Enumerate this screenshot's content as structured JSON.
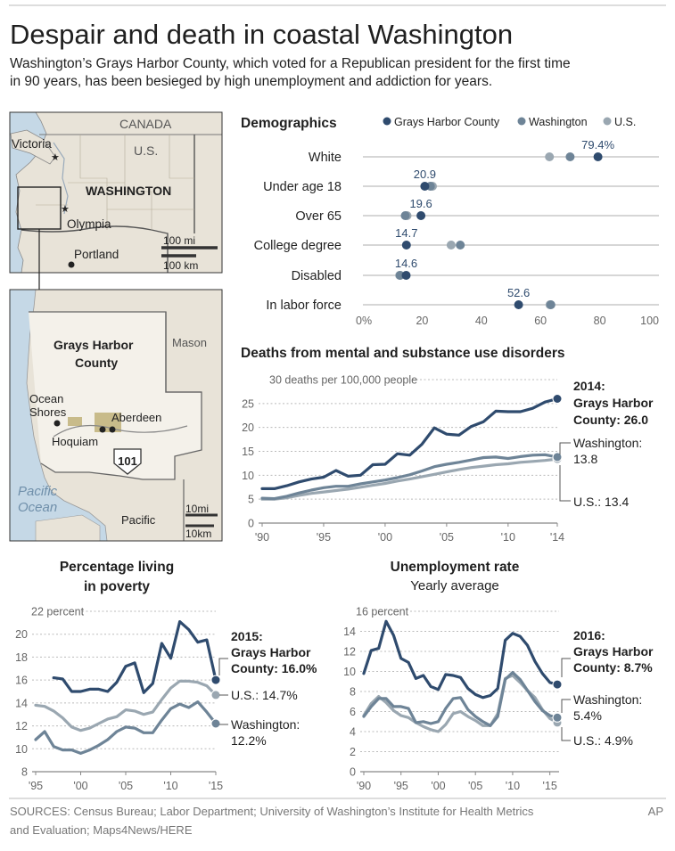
{
  "headline": "Despair and death in coastal Washington",
  "dek": [
    "Washington’s Grays Harbor County, which voted for a Republican president for the first time",
    "in 90 years, has been besieged by high unemployment and addiction for years."
  ],
  "footer": {
    "sources_lines": [
      "SOURCES: Census Bureau; Labor Department; University of Washington’s Institute for Health Metrics",
      "and Evaluation; Maps4News/HERE"
    ],
    "credit": "AP"
  },
  "colors": {
    "grays_harbor": "#2f4b6e",
    "washington": "#6e8497",
    "us": "#9aa7b1",
    "gridline": "#c8c8c8",
    "land": "#e8e3d8",
    "water": "#c5d8e6",
    "urban": "#b9a86a"
  },
  "map_top": {
    "labels": {
      "canada": "CANADA",
      "us": "U.S.",
      "state": "WASHINGTON",
      "victoria": "Victoria",
      "olympia": "Olympia",
      "portland": "Portland"
    },
    "scale": {
      "miles": "100 mi",
      "km": "100 km"
    }
  },
  "map_detail": {
    "labels": {
      "county": [
        "Grays Harbor",
        "County"
      ],
      "mason": "Mason",
      "ocean_shores": [
        "Ocean",
        "Shores"
      ],
      "aberdeen": "Aberdeen",
      "hoquiam": "Hoquiam",
      "highway": "101",
      "ocean": [
        "Pacific",
        "Ocean"
      ],
      "pacific_county": "Pacific"
    },
    "scale": {
      "miles": "10mi",
      "km": "10km"
    }
  },
  "chart_data": [
    {
      "type": "dot",
      "title": "Demographics",
      "legend": [
        "Grays Harbor County",
        "Washington",
        "U.S."
      ],
      "categories": [
        "White",
        "Under age 18",
        "Over 65",
        "College degree",
        "Disabled",
        "In labor force"
      ],
      "series": [
        {
          "name": "Grays Harbor County",
          "values": [
            79.4,
            20.9,
            19.6,
            14.7,
            14.6,
            52.6
          ]
        },
        {
          "name": "Washington",
          "values": [
            70,
            22.8,
            14.3,
            32.9,
            12.6,
            63.5
          ]
        },
        {
          "name": "U.S.",
          "values": [
            63,
            23.5,
            14.9,
            29.8,
            12.4,
            63.2
          ]
        }
      ],
      "value_labels": [
        "79.4%",
        "20.9",
        "19.6",
        "14.7",
        "14.6",
        "52.6"
      ],
      "xlim": [
        0,
        100
      ],
      "xticks": [
        0,
        20,
        40,
        60,
        80,
        100
      ],
      "xtick_labels": [
        "0%",
        "20",
        "40",
        "60",
        "80",
        "100"
      ]
    },
    {
      "type": "line",
      "title": "Deaths from mental and substance use disorders",
      "ylabel_note": "30 deaths per 100,000 people",
      "x": [
        1990,
        1991,
        1992,
        1993,
        1994,
        1995,
        1996,
        1997,
        1998,
        1999,
        2000,
        2001,
        2002,
        2003,
        2004,
        2005,
        2006,
        2007,
        2008,
        2009,
        2010,
        2011,
        2012,
        2013,
        2014
      ],
      "ylim": [
        0,
        30
      ],
      "yticks": [
        0,
        5,
        10,
        15,
        20,
        25,
        30
      ],
      "xticks": [
        1990,
        1995,
        2000,
        2005,
        2010,
        2014
      ],
      "xtick_labels": [
        "'90",
        "'95",
        "'00",
        "'05",
        "'10",
        "'14"
      ],
      "series": [
        {
          "name": "Grays Harbor County",
          "values": [
            7.2,
            7.2,
            7.8,
            8.6,
            9.2,
            9.6,
            11.0,
            9.8,
            10.0,
            12.2,
            12.3,
            14.5,
            14.2,
            16.5,
            19.9,
            18.6,
            18.4,
            20.2,
            21.2,
            23.4,
            23.3,
            23.3,
            24.0,
            25.3,
            26.0
          ]
        },
        {
          "name": "Washington",
          "values": [
            5.2,
            5.1,
            5.6,
            6.3,
            6.9,
            7.4,
            7.7,
            7.7,
            8.2,
            8.6,
            9.0,
            9.5,
            10.1,
            10.9,
            11.8,
            12.3,
            12.7,
            13.2,
            13.7,
            13.8,
            13.5,
            13.9,
            14.2,
            14.3,
            13.8
          ]
        },
        {
          "name": "U.S.",
          "values": [
            5.0,
            5.0,
            5.3,
            5.8,
            6.2,
            6.5,
            6.8,
            7.1,
            7.5,
            7.9,
            8.3,
            8.8,
            9.2,
            9.7,
            10.2,
            10.7,
            11.2,
            11.6,
            11.9,
            12.2,
            12.4,
            12.7,
            12.9,
            13.1,
            13.4
          ]
        }
      ],
      "end_labels": {
        "grays_harbor": [
          "2014:",
          "Grays Harbor",
          "County: 26.0"
        ],
        "washington": [
          "Washington:",
          "13.8"
        ],
        "us": [
          "U.S.: 13.4"
        ]
      }
    },
    {
      "type": "line",
      "title": [
        "Percentage living",
        "in poverty"
      ],
      "ylabel_note": "22 percent",
      "x": [
        1995,
        1996,
        1997,
        1998,
        1999,
        2000,
        2001,
        2002,
        2003,
        2004,
        2005,
        2006,
        2007,
        2008,
        2009,
        2010,
        2011,
        2012,
        2013,
        2014,
        2015
      ],
      "ylim": [
        8,
        22
      ],
      "yticks": [
        8,
        10,
        12,
        14,
        16,
        18,
        20,
        22
      ],
      "xticks": [
        1995,
        2000,
        2005,
        2010,
        2015
      ],
      "xtick_labels": [
        "'95",
        "'00",
        "'05",
        "'10",
        "'15"
      ],
      "series": [
        {
          "name": "Grays Harbor County",
          "values": [
            null,
            null,
            16.2,
            16.1,
            15.0,
            15.0,
            15.2,
            15.2,
            15.0,
            15.8,
            17.2,
            17.5,
            14.9,
            15.7,
            19.2,
            17.9,
            21.1,
            20.4,
            19.3,
            19.5,
            16.0
          ]
        },
        {
          "name": "Washington",
          "values": [
            10.8,
            11.5,
            10.2,
            9.9,
            9.9,
            9.6,
            9.9,
            10.3,
            10.8,
            11.5,
            11.9,
            11.8,
            11.4,
            11.4,
            12.5,
            13.5,
            13.9,
            13.6,
            14.1,
            13.2,
            12.2
          ]
        },
        {
          "name": "U.S.",
          "values": [
            13.8,
            13.7,
            13.3,
            12.7,
            11.9,
            11.6,
            11.8,
            12.2,
            12.6,
            12.8,
            13.4,
            13.3,
            13.0,
            13.2,
            14.3,
            15.3,
            15.9,
            15.9,
            15.8,
            15.5,
            14.7
          ]
        }
      ],
      "end_labels": {
        "grays_harbor": [
          "2015:",
          "Grays Harbor",
          "County: 16.0%"
        ],
        "us": [
          "U.S.: 14.7%"
        ],
        "washington": [
          "Washington:",
          "12.2%"
        ]
      }
    },
    {
      "type": "line",
      "title": "Unemployment rate",
      "subtitle": "Yearly average",
      "ylabel_note": "16 percent",
      "x": [
        1990,
        1991,
        1992,
        1993,
        1994,
        1995,
        1996,
        1997,
        1998,
        1999,
        2000,
        2001,
        2002,
        2003,
        2004,
        2005,
        2006,
        2007,
        2008,
        2009,
        2010,
        2011,
        2012,
        2013,
        2014,
        2015,
        2016
      ],
      "ylim": [
        0,
        16
      ],
      "yticks": [
        0,
        2,
        4,
        6,
        8,
        10,
        12,
        14,
        16
      ],
      "xticks": [
        1990,
        1995,
        2000,
        2005,
        2010,
        2015
      ],
      "xtick_labels": [
        "'90",
        "'95",
        "'00",
        "'05",
        "'10",
        "'15"
      ],
      "series": [
        {
          "name": "Grays Harbor County",
          "values": [
            9.8,
            12.1,
            12.3,
            15.0,
            13.6,
            11.3,
            10.9,
            9.3,
            9.6,
            8.5,
            8.2,
            9.7,
            9.6,
            9.4,
            8.3,
            7.7,
            7.4,
            7.6,
            8.3,
            13.1,
            13.8,
            13.5,
            12.6,
            11.0,
            9.8,
            8.9,
            8.7
          ]
        },
        {
          "name": "Washington",
          "values": [
            5.5,
            6.5,
            7.3,
            7.3,
            6.5,
            6.5,
            6.3,
            4.9,
            5.0,
            4.8,
            5.0,
            6.3,
            7.3,
            7.4,
            6.2,
            5.5,
            5.0,
            4.6,
            5.5,
            9.2,
            9.9,
            9.2,
            8.1,
            7.0,
            6.1,
            5.6,
            5.4
          ]
        },
        {
          "name": "U.S.",
          "values": [
            5.6,
            6.8,
            7.5,
            6.9,
            6.1,
            5.6,
            5.4,
            4.9,
            4.5,
            4.2,
            4.0,
            4.7,
            5.8,
            6.0,
            5.5,
            5.1,
            4.6,
            4.6,
            5.8,
            9.3,
            9.6,
            8.9,
            8.1,
            7.4,
            6.2,
            5.3,
            4.9
          ]
        }
      ],
      "end_labels": {
        "grays_harbor": [
          "2016:",
          "Grays Harbor",
          "County: 8.7%"
        ],
        "washington": [
          "Washington:",
          "5.4%"
        ],
        "us": [
          "U.S.: 4.9%"
        ]
      }
    }
  ]
}
